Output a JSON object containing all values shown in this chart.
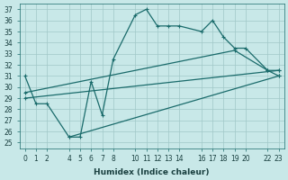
{
  "xlabel": "Humidex (Indice chaleur)",
  "bg_color": "#c8e8e8",
  "grid_color": "#a0c8c8",
  "line_color": "#1a6b6b",
  "xlim": [
    -0.5,
    23.5
  ],
  "ylim": [
    24.5,
    37.5
  ],
  "yticks": [
    25,
    26,
    27,
    28,
    29,
    30,
    31,
    32,
    33,
    34,
    35,
    36,
    37
  ],
  "xticks": [
    0,
    1,
    2,
    4,
    5,
    6,
    7,
    8,
    10,
    11,
    12,
    13,
    14,
    16,
    17,
    18,
    19,
    20,
    22,
    23
  ],
  "xtick_labels": [
    "0",
    "1",
    "2",
    "4",
    "5",
    "6",
    "7",
    "8",
    "10",
    "11",
    "12",
    "13",
    "14",
    "16",
    "17",
    "18",
    "19",
    "20",
    "22",
    "23"
  ],
  "curve1_x": [
    0,
    1,
    2,
    4,
    5,
    6,
    7,
    8,
    10,
    11,
    12,
    13,
    14,
    16,
    17,
    18,
    19,
    20,
    22,
    23
  ],
  "curve1_y": [
    31,
    28.5,
    28.5,
    25.5,
    25.5,
    30.5,
    27.5,
    32.5,
    36.5,
    37,
    35.5,
    35.5,
    35.5,
    35,
    36,
    34.5,
    33.5,
    33.5,
    31.5,
    31
  ],
  "curve2_x": [
    0,
    23
  ],
  "curve2_y": [
    29.0,
    31.5
  ],
  "curve3_x": [
    4,
    23
  ],
  "curve3_y": [
    25.5,
    31.0
  ],
  "curve4_x": [
    0,
    19,
    22,
    23
  ],
  "curve4_y": [
    29.5,
    33.3,
    31.5,
    31.5
  ]
}
